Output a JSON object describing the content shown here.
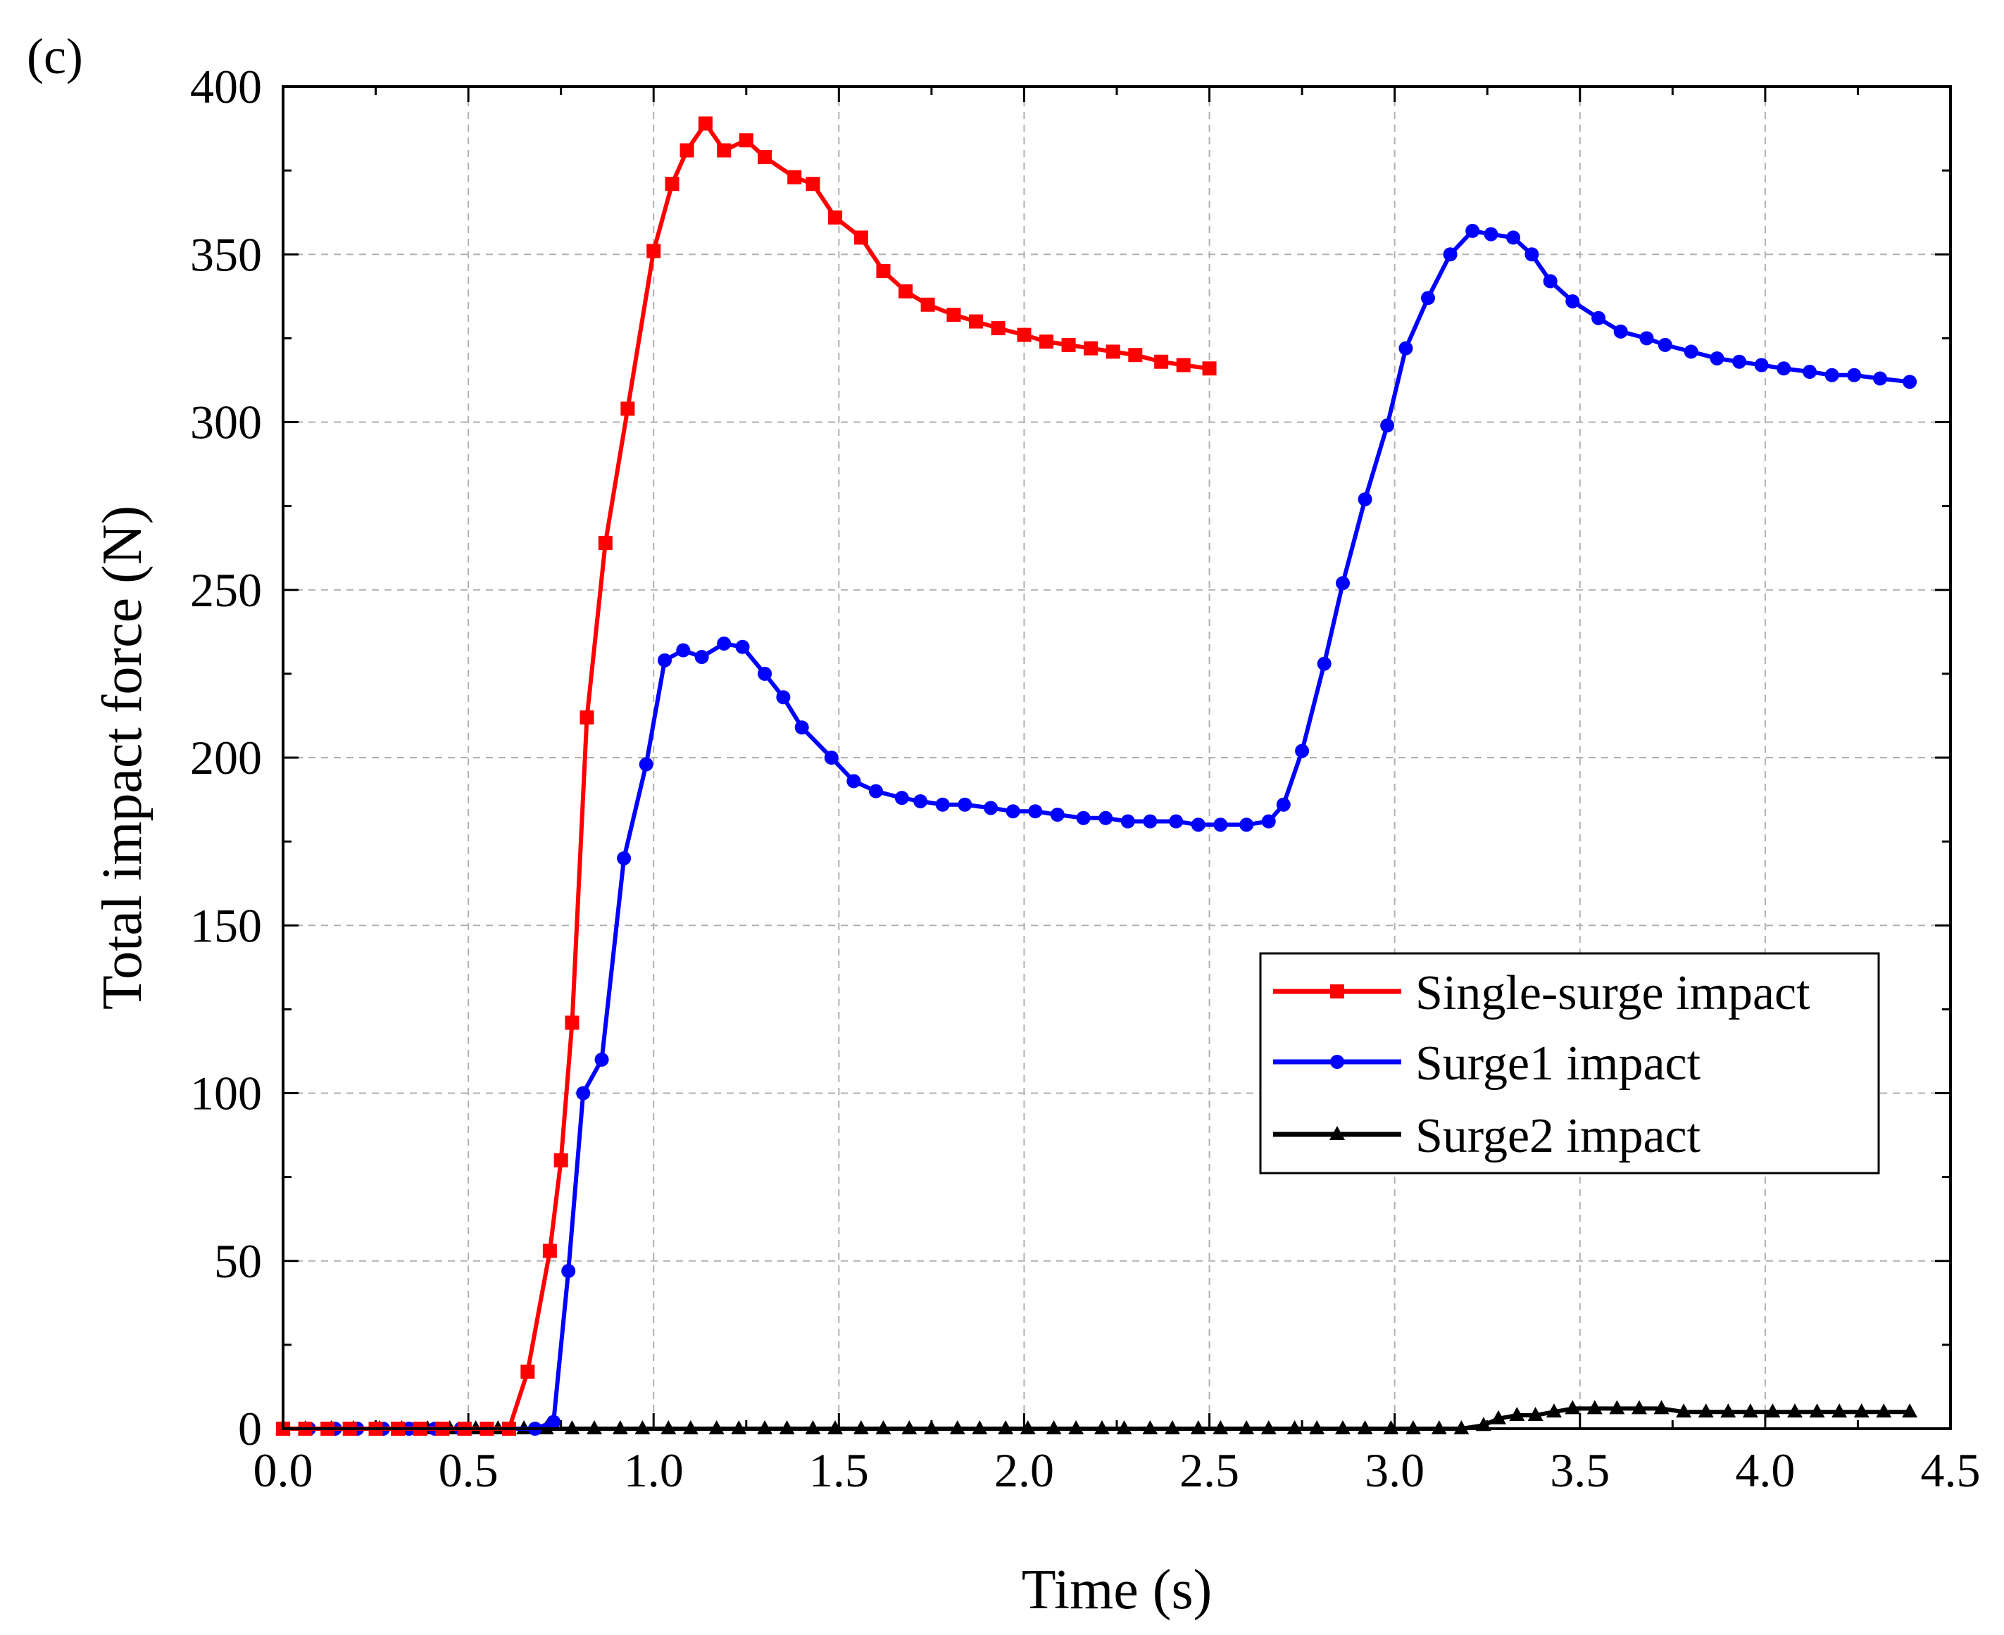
{
  "chart_data": {
    "type": "line",
    "panel_label": "(c)",
    "title": "",
    "xlabel": "Time (s)",
    "ylabel": "Total impact force (N)",
    "xlim": [
      0,
      4.5
    ],
    "ylim": [
      0,
      400
    ],
    "xticks": [
      "0.0",
      "0.5",
      "1.0",
      "1.5",
      "2.0",
      "2.5",
      "3.0",
      "3.5",
      "4.0",
      "4.5"
    ],
    "yticks": [
      "0",
      "50",
      "100",
      "150",
      "200",
      "250",
      "300",
      "350",
      "400"
    ],
    "grid": true,
    "legend_position": "lower-right",
    "series": [
      {
        "name": "Single-surge impact",
        "color": "#ff0000",
        "marker": "square",
        "x": [
          0.0,
          0.06,
          0.12,
          0.18,
          0.25,
          0.31,
          0.37,
          0.43,
          0.49,
          0.55,
          0.61,
          0.66,
          0.72,
          0.75,
          0.78,
          0.82,
          0.87,
          0.93,
          1.0,
          1.05,
          1.09,
          1.14,
          1.19,
          1.25,
          1.3,
          1.38,
          1.43,
          1.49,
          1.56,
          1.62,
          1.68,
          1.74,
          1.81,
          1.87,
          1.93,
          2.0,
          2.06,
          2.12,
          2.18,
          2.24,
          2.3,
          2.37,
          2.43,
          2.5
        ],
        "y": [
          0,
          0,
          0,
          0,
          0,
          0,
          0,
          0,
          0,
          0,
          0,
          17,
          53,
          80,
          121,
          212,
          264,
          304,
          351,
          371,
          381,
          389,
          381,
          384,
          379,
          373,
          371,
          361,
          355,
          345,
          339,
          335,
          332,
          330,
          328,
          326,
          324,
          323,
          322,
          321,
          320,
          318,
          317,
          316
        ]
      },
      {
        "name": "Surge1 impact",
        "color": "#0000ff",
        "marker": "circle",
        "x": [
          0.0,
          0.07,
          0.14,
          0.2,
          0.27,
          0.34,
          0.41,
          0.48,
          0.55,
          0.61,
          0.68,
          0.73,
          0.77,
          0.81,
          0.86,
          0.92,
          0.98,
          1.03,
          1.08,
          1.13,
          1.19,
          1.24,
          1.3,
          1.35,
          1.4,
          1.48,
          1.54,
          1.6,
          1.67,
          1.72,
          1.78,
          1.84,
          1.91,
          1.97,
          2.03,
          2.09,
          2.16,
          2.22,
          2.28,
          2.34,
          2.41,
          2.47,
          2.53,
          2.6,
          2.66,
          2.7,
          2.75,
          2.81,
          2.86,
          2.92,
          2.98,
          3.03,
          3.09,
          3.15,
          3.21,
          3.26,
          3.32,
          3.37,
          3.42,
          3.48,
          3.55,
          3.61,
          3.68,
          3.73,
          3.8,
          3.87,
          3.93,
          3.99,
          4.05,
          4.12,
          4.18,
          4.24,
          4.31,
          4.39
        ],
        "y": [
          0,
          0,
          0,
          0,
          0,
          0,
          0,
          0,
          0,
          0,
          0,
          2,
          47,
          100,
          110,
          170,
          198,
          229,
          232,
          230,
          234,
          233,
          225,
          218,
          209,
          200,
          193,
          190,
          188,
          187,
          186,
          186,
          185,
          184,
          184,
          183,
          182,
          182,
          181,
          181,
          181,
          180,
          180,
          180,
          181,
          186,
          202,
          228,
          252,
          277,
          299,
          322,
          337,
          350,
          357,
          356,
          355,
          350,
          342,
          336,
          331,
          327,
          325,
          323,
          321,
          319,
          318,
          317,
          316,
          315,
          314,
          314,
          313,
          312
        ]
      },
      {
        "name": "Surge2 impact",
        "color": "#000000",
        "marker": "triangle",
        "x": [
          0.0,
          0.06,
          0.13,
          0.19,
          0.26,
          0.32,
          0.39,
          0.45,
          0.52,
          0.58,
          0.65,
          0.71,
          0.78,
          0.84,
          0.91,
          0.97,
          1.04,
          1.1,
          1.17,
          1.23,
          1.3,
          1.36,
          1.43,
          1.49,
          1.56,
          1.62,
          1.69,
          1.75,
          1.82,
          1.88,
          1.95,
          2.01,
          2.08,
          2.14,
          2.21,
          2.27,
          2.34,
          2.4,
          2.47,
          2.53,
          2.6,
          2.66,
          2.73,
          2.79,
          2.86,
          2.92,
          2.99,
          3.05,
          3.12,
          3.18,
          3.24,
          3.28,
          3.33,
          3.38,
          3.43,
          3.48,
          3.54,
          3.6,
          3.66,
          3.72,
          3.78,
          3.84,
          3.9,
          3.96,
          4.02,
          4.08,
          4.14,
          4.2,
          4.26,
          4.32,
          4.39
        ],
        "y": [
          0,
          0,
          0,
          0,
          0,
          0,
          0,
          0,
          0,
          0,
          0,
          0,
          0,
          0,
          0,
          0,
          0,
          0,
          0,
          0,
          0,
          0,
          0,
          0,
          0,
          0,
          0,
          0,
          0,
          0,
          0,
          0,
          0,
          0,
          0,
          0,
          0,
          0,
          0,
          0,
          0,
          0,
          0,
          0,
          0,
          0,
          0,
          0,
          0,
          0,
          1,
          3,
          4,
          4,
          5,
          6,
          6,
          6,
          6,
          6,
          5,
          5,
          5,
          5,
          5,
          5,
          5,
          5,
          5,
          5,
          5
        ]
      }
    ]
  }
}
